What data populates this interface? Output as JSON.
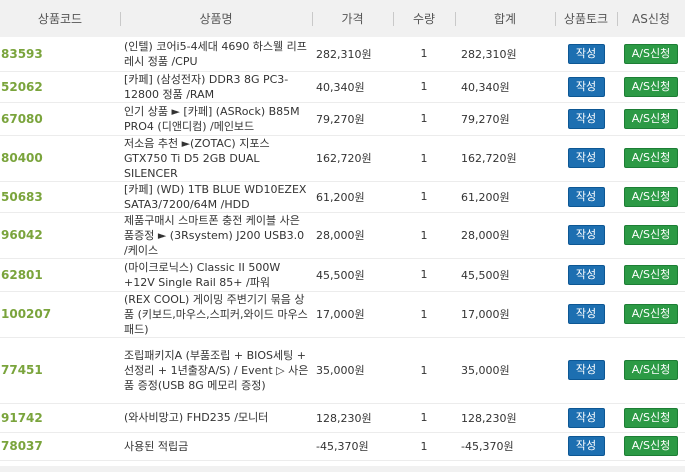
{
  "headers": {
    "code": "상품코드",
    "name": "상품명",
    "price": "가격",
    "qty": "수량",
    "total": "합계",
    "talk": "상품토크",
    "as": "AS신청"
  },
  "buttons": {
    "write": "작성",
    "as": "A/S신청"
  },
  "rows": [
    {
      "code": "83593",
      "name": "(인텔) 코어i5-4세대 4690 하스웰 리프레시 정품 /CPU",
      "price": "282,310원",
      "qty": "1",
      "total": "282,310원"
    },
    {
      "code": "52062",
      "name": "[카페] (삼성전자) DDR3 8G PC3-12800 정품 /RAM",
      "price": "40,340원",
      "qty": "1",
      "total": "40,340원"
    },
    {
      "code": "67080",
      "name": "인기 상품 ► [카페] (ASRock) B85M PRO4 (디앤디컴) /메인보드",
      "price": "79,270원",
      "qty": "1",
      "total": "79,270원"
    },
    {
      "code": "80400",
      "name": "저소음 추천 ►(ZOTAC) 지포스 GTX750 Ti D5 2GB DUAL SILENCER",
      "price": "162,720원",
      "qty": "1",
      "total": "162,720원"
    },
    {
      "code": "50683",
      "name": "[카페] (WD) 1TB BLUE WD10EZEX SATA3/7200/64M /HDD",
      "price": "61,200원",
      "qty": "1",
      "total": "61,200원"
    },
    {
      "code": "96042",
      "name": "제품구매시 스마트폰 충전 케이블 사은품증정 ► (3Rsystem) J200 USB3.0 /케이스",
      "price": "28,000원",
      "qty": "1",
      "total": "28,000원"
    },
    {
      "code": "62801",
      "name": "(마이크로닉스) Classic II 500W +12V Single Rail 85+ /파워",
      "price": "45,500원",
      "qty": "1",
      "total": "45,500원"
    },
    {
      "code": "100207",
      "name": "(REX COOL) 게이밍 주변기기 묶음 상품 (키보드,마우스,스피커,와이드 마우스패드)",
      "price": "17,000원",
      "qty": "1",
      "total": "17,000원"
    },
    {
      "code": "77451",
      "name": "조립패키지A (부품조립 + BIOS세팅 + 선정리 + 1년출장A/S) / Event ▷ 사은품 증정(USB 8G 메모리 증정)",
      "price": "35,000원",
      "qty": "1",
      "total": "35,000원"
    },
    {
      "code": "91742",
      "name": "(와사비망고) FHD235 /모니터",
      "price": "128,230원",
      "qty": "1",
      "total": "128,230원"
    },
    {
      "code": "78037",
      "name": "사용된 적립금",
      "price": "-45,370원",
      "qty": "1",
      "total": "-45,370원"
    }
  ]
}
